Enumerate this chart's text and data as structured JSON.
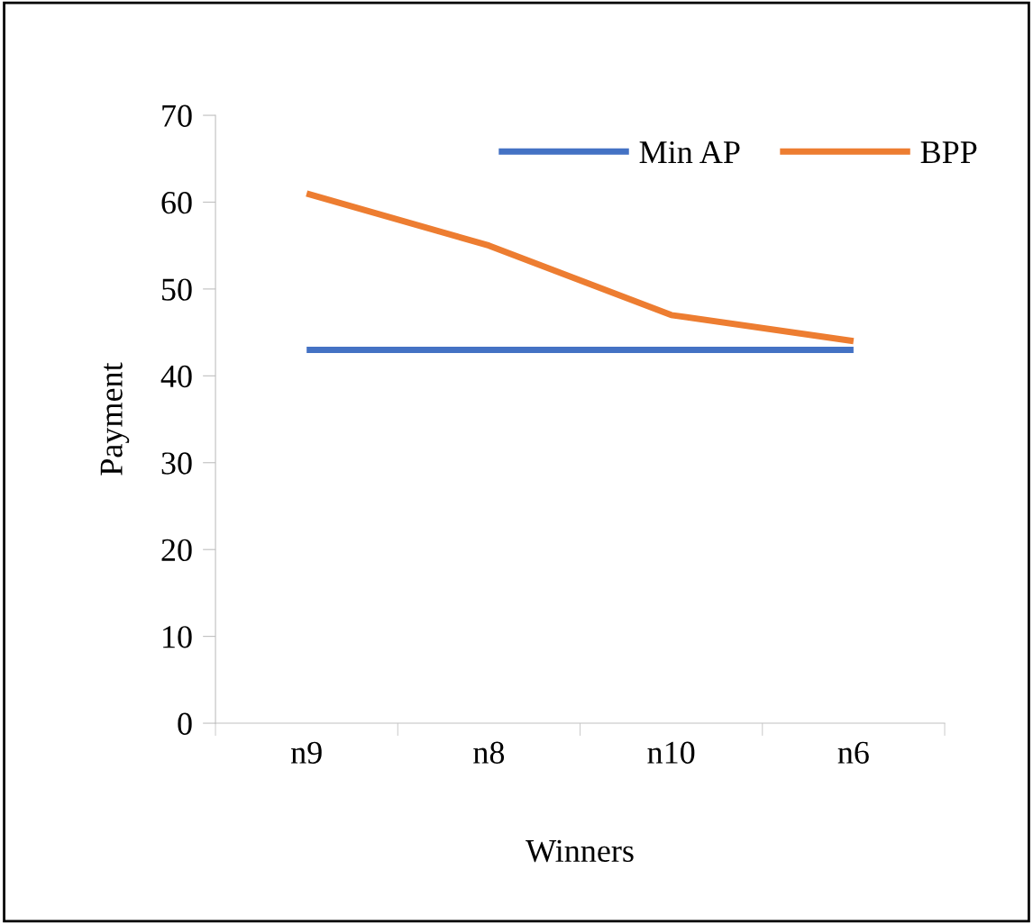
{
  "chart_data": {
    "type": "line",
    "xlabel": "Winners",
    "ylabel": "Payment",
    "categories": [
      "n9",
      "n8",
      "n10",
      "n6"
    ],
    "series": [
      {
        "name": "Min AP",
        "color": "#4472c4",
        "values": [
          43,
          43,
          43,
          43
        ]
      },
      {
        "name": "BPP",
        "color": "#ed7d31",
        "values": [
          61,
          55,
          47,
          44
        ]
      }
    ],
    "ylim": [
      0,
      70
    ],
    "yticks": [
      0,
      10,
      20,
      30,
      40,
      50,
      60,
      70
    ],
    "grid": false,
    "legend": "top right",
    "marker": "none",
    "line_style": "solid"
  }
}
